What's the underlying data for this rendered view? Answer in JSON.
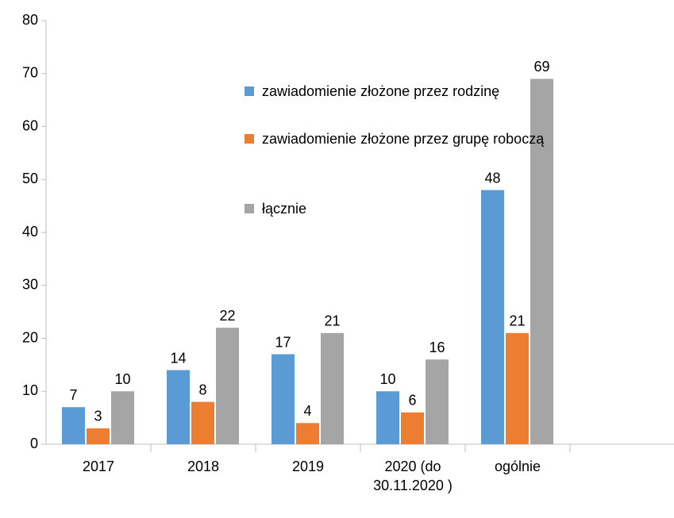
{
  "chart_data": {
    "type": "bar",
    "categories": [
      "2017",
      "2018",
      "2019",
      "2020 (do 30.11.2020 )",
      "ogólnie",
      null
    ],
    "series": [
      {
        "name": "zawiadomienie złożone przez rodzinę",
        "color": "#5b9bd5",
        "values": [
          7,
          14,
          17,
          10,
          48,
          null
        ]
      },
      {
        "name": "zawiadomienie złożone przez grupę roboczą",
        "color": "#ed7d31",
        "values": [
          3,
          8,
          4,
          6,
          21,
          null
        ]
      },
      {
        "name": "łącznie",
        "color": "#a5a5a5",
        "values": [
          10,
          22,
          21,
          16,
          69,
          null
        ]
      }
    ],
    "ylim": [
      0,
      80
    ],
    "yticks": [
      0,
      10,
      20,
      30,
      40,
      50,
      60,
      70,
      80
    ],
    "grid": false,
    "legend": "inside top"
  }
}
